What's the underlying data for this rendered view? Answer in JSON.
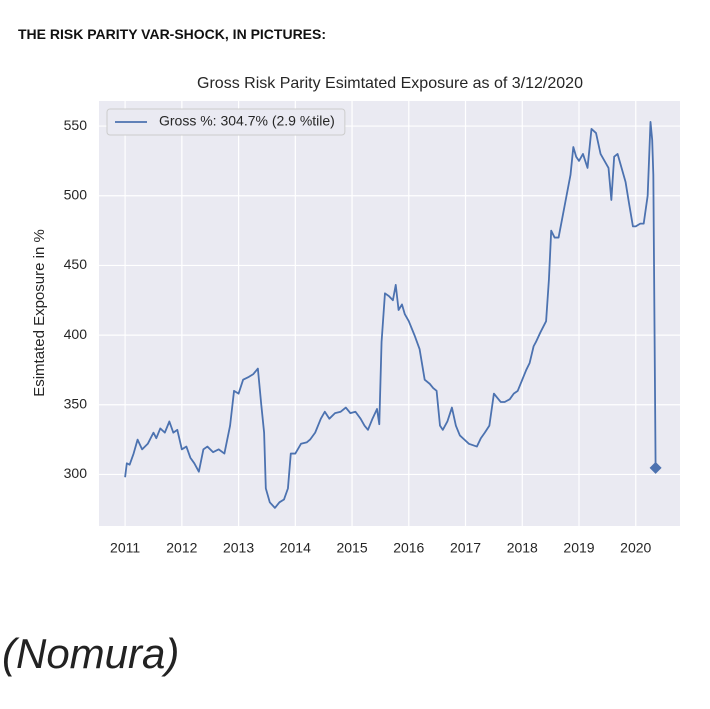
{
  "heading": "THE RISK PARITY VAR-SHOCK, IN PICTURES:",
  "source": "(Nomura)",
  "chart_data": {
    "type": "line",
    "title": "Gross Risk Parity Esimtated Exposure as of 3/12/2020",
    "y_label": "Esimtated Exposure in %",
    "xlim": [
      2010.54,
      2020.78
    ],
    "xticks": [
      2011,
      2012,
      2013,
      2014,
      2015,
      2016,
      2017,
      2018,
      2019,
      2020
    ],
    "ylim": [
      263,
      568
    ],
    "yticks": [
      300,
      350,
      400,
      450,
      500,
      550
    ],
    "grid": true,
    "legend": "upper left",
    "series": [
      {
        "name": "Gross %:  304.7% (2.9 %tile)",
        "color": "#4c72b0",
        "last_marker": "diamond",
        "x": [
          2011.0,
          2011.03,
          2011.08,
          2011.15,
          2011.22,
          2011.3,
          2011.4,
          2011.5,
          2011.55,
          2011.62,
          2011.7,
          2011.78,
          2011.85,
          2011.92,
          2012.0,
          2012.08,
          2012.15,
          2012.22,
          2012.3,
          2012.38,
          2012.45,
          2012.55,
          2012.65,
          2012.75,
          2012.85,
          2012.92,
          2013.0,
          2013.08,
          2013.18,
          2013.26,
          2013.34,
          2013.4,
          2013.45,
          2013.48,
          2013.55,
          2013.64,
          2013.72,
          2013.8,
          2013.87,
          2013.92,
          2014.0,
          2014.1,
          2014.2,
          2014.26,
          2014.35,
          2014.45,
          2014.52,
          2014.6,
          2014.7,
          2014.8,
          2014.89,
          2014.97,
          2015.06,
          2015.15,
          2015.22,
          2015.28,
          2015.36,
          2015.44,
          2015.48,
          2015.52,
          2015.58,
          2015.65,
          2015.72,
          2015.77,
          2015.82,
          2015.88,
          2015.93,
          2016.0,
          2016.1,
          2016.19,
          2016.28,
          2016.37,
          2016.43,
          2016.49,
          2016.55,
          2016.6,
          2016.68,
          2016.76,
          2016.83,
          2016.9,
          2016.98,
          2017.06,
          2017.13,
          2017.2,
          2017.27,
          2017.34,
          2017.42,
          2017.5,
          2017.56,
          2017.62,
          2017.69,
          2017.78,
          2017.85,
          2017.92,
          2018.0,
          2018.07,
          2018.13,
          2018.2,
          2018.24,
          2018.32,
          2018.42,
          2018.47,
          2018.51,
          2018.57,
          2018.64,
          2018.71,
          2018.78,
          2018.85,
          2018.9,
          2018.95,
          2019.0,
          2019.07,
          2019.15,
          2019.22,
          2019.3,
          2019.38,
          2019.45,
          2019.52,
          2019.57,
          2019.62,
          2019.68,
          2019.75,
          2019.82,
          2019.88,
          2019.95,
          2020.0,
          2020.08,
          2020.14,
          2020.21,
          2020.26,
          2020.29,
          2020.31,
          2020.35
        ],
        "values": [
          298,
          308,
          307,
          315,
          325,
          318,
          322,
          330,
          326,
          333,
          330,
          338,
          330,
          332,
          318,
          320,
          312,
          308,
          302,
          318,
          320,
          316,
          318,
          315,
          335,
          360,
          358,
          368,
          370,
          372,
          376,
          350,
          330,
          290,
          280,
          276,
          280,
          282,
          290,
          315,
          315,
          322,
          323,
          325,
          330,
          340,
          345,
          340,
          344,
          345,
          348,
          344,
          345,
          340,
          335,
          332,
          340,
          347,
          336,
          395,
          430,
          428,
          425,
          436,
          418,
          422,
          415,
          410,
          400,
          390,
          368,
          365,
          362,
          360,
          335,
          332,
          338,
          348,
          335,
          328,
          325,
          322,
          321,
          320,
          326,
          330,
          335,
          358,
          355,
          352,
          352,
          354,
          358,
          360,
          368,
          375,
          380,
          392,
          395,
          402,
          410,
          440,
          475,
          470,
          470,
          485,
          500,
          515,
          535,
          528,
          525,
          530,
          520,
          548,
          545,
          530,
          525,
          520,
          497,
          528,
          530,
          520,
          510,
          495,
          478,
          478,
          480,
          480,
          500,
          553,
          540,
          515,
          304.7
        ]
      }
    ]
  }
}
